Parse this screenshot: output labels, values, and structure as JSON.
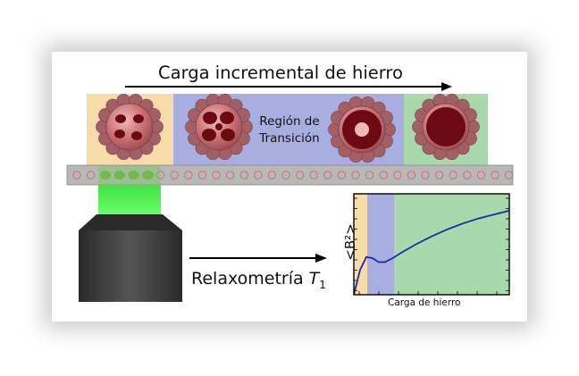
{
  "diagram": {
    "title": "Carga incremental de hierro",
    "transition_region": "Región de\nTransición",
    "relaxometry": {
      "text": "Relaxometría ",
      "symbol": "T",
      "subscript": "1"
    },
    "colors": {
      "region_low": "#f7dcaa",
      "region_transition": "#a9aee0",
      "region_high": "#a9d8ac",
      "protein_shell": "#a35f66",
      "iron_core": "#6b0a12",
      "laser": "#55f055",
      "curve": "#1a2aa8"
    }
  },
  "chart_data": {
    "type": "line",
    "xlabel": "Carga de hierro",
    "ylabel": "<B²>",
    "regions": [
      "low-load",
      "transition",
      "high-load"
    ],
    "series": [
      {
        "x": [
          0,
          0.04,
          0.08,
          0.12,
          0.16,
          0.2,
          0.25,
          0.3,
          0.4,
          0.5,
          0.6,
          0.7,
          0.8,
          0.9,
          1.0
        ],
        "y": [
          0.0,
          0.25,
          0.38,
          0.37,
          0.33,
          0.33,
          0.37,
          0.42,
          0.51,
          0.59,
          0.66,
          0.72,
          0.77,
          0.81,
          0.85
        ]
      }
    ],
    "grid": false
  }
}
